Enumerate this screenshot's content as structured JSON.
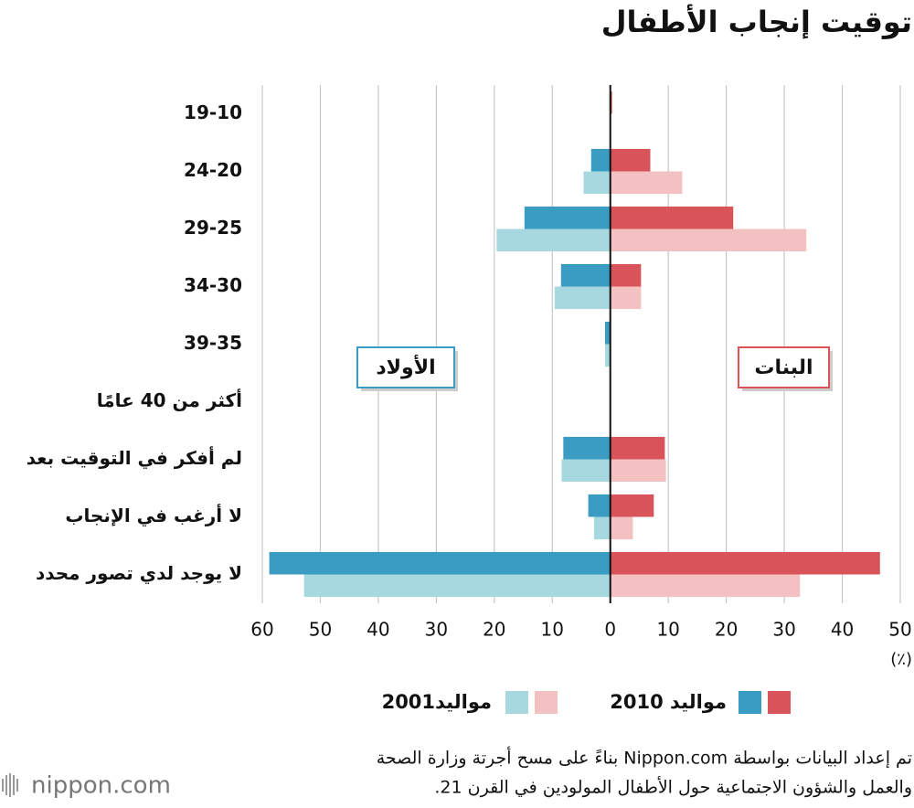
{
  "chart_data": {
    "type": "pyramid",
    "title": "توقيت إنجاب الأطفال",
    "categories": [
      "19-10",
      "24-20",
      "29-25",
      "34-30",
      "39-35",
      "أكثر من 40 عامًا",
      "لم أفكر في التوقيت بعد",
      "لا أرغب في الإنجاب",
      "لا يوجد لدي تصور محدد"
    ],
    "side_labels": {
      "boys": "الأولاد",
      "girls": "البنات"
    },
    "series": [
      {
        "name": "مواليد 2010",
        "colors": {
          "boys": "#3a9cc2",
          "girls": "#d9545a"
        },
        "boys": [
          0,
          -3.3,
          -14.8,
          -8.5,
          -0.9,
          0,
          -8.1,
          -3.8,
          -58.8
        ],
        "girls": [
          0.3,
          6.9,
          21.2,
          5.3,
          0,
          0,
          9.4,
          7.5,
          46.5
        ]
      },
      {
        "name": "مواليد2001",
        "colors": {
          "boys": "#a7d8df",
          "girls": "#f3c1c1"
        },
        "boys": [
          0,
          -4.6,
          -19.6,
          -9.6,
          -0.9,
          0,
          -8.4,
          -2.8,
          -52.8
        ],
        "girls": [
          0,
          12.4,
          33.8,
          5.3,
          0,
          0,
          9.6,
          3.9,
          32.7
        ]
      }
    ],
    "xlim": [
      -60,
      50
    ],
    "xticks": [
      {
        "value": -60,
        "label": "60"
      },
      {
        "value": -50,
        "label": "50"
      },
      {
        "value": -40,
        "label": "40"
      },
      {
        "value": -30,
        "label": "30"
      },
      {
        "value": -20,
        "label": "20"
      },
      {
        "value": -10,
        "label": "10"
      },
      0,
      10,
      20,
      30,
      40,
      50
    ],
    "unit_label": "(٪)",
    "grid": true,
    "source": [
      "تم إعداد البيانات بواسطة Nippon.com بناءً على مسح أجرتة وزارة الصحة",
      "والعمل والشؤون الاجتماعية حول الأطفال المولودين في القرن 21."
    ],
    "logo": "nippon.com"
  }
}
